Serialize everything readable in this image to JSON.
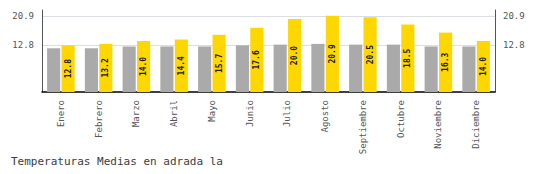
{
  "chart_data": {
    "type": "bar",
    "title": "Temperaturas Medias en adrada la",
    "categories": [
      "Enero",
      "Febrero",
      "Marzo",
      "Abril",
      "Mayo",
      "Junio",
      "Julio",
      "Agosto",
      "Septiembre",
      "Octubre",
      "Noviembre",
      "Diciembre"
    ],
    "series": [
      {
        "color": "#AAAAAA",
        "values": [
          12.0,
          12.0,
          12.5,
          12.5,
          12.5,
          12.8,
          13.0,
          13.2,
          13.0,
          13.0,
          12.5,
          12.5
        ]
      },
      {
        "color": "#FFD700",
        "values": [
          12.8,
          13.2,
          14.0,
          14.4,
          15.7,
          17.6,
          20.0,
          20.9,
          20.5,
          18.5,
          16.3,
          14.0
        ],
        "data_labels": true,
        "value_labels": [
          "12.8",
          "13.2",
          "14.0",
          "14.4",
          "15.7",
          "17.6",
          "20.0",
          "20.9",
          "20.5",
          "18.5",
          "16.3",
          "14.0"
        ]
      }
    ],
    "ylim": [
      0,
      22.5
    ],
    "yticks": [
      12.8,
      20.9
    ],
    "y2lim": [
      0,
      22.5
    ],
    "y2ticks": [
      12.8,
      20.9
    ],
    "grid": true
  }
}
